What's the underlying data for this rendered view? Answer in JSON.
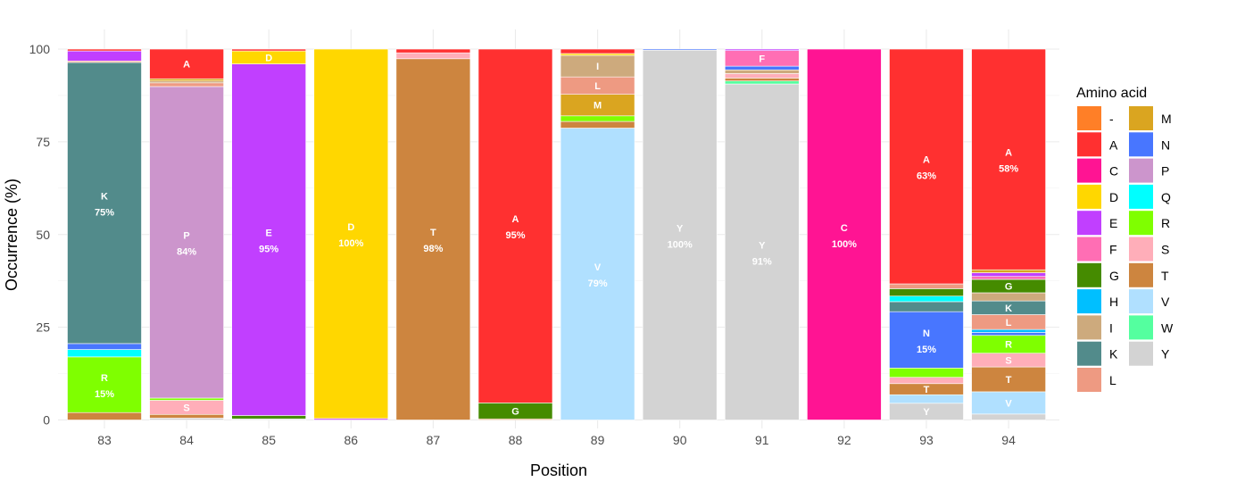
{
  "chart_data": {
    "type": "bar",
    "stacked": true,
    "xlabel": "Position",
    "ylabel": "Occurrence (%)",
    "ylim": [
      0,
      100
    ],
    "yticks": [
      0,
      25,
      50,
      75,
      100
    ],
    "grid": true,
    "legend": {
      "title": "Amino acid",
      "placement": "right",
      "columns": 2
    },
    "colors": {
      "-": "#FF7F27",
      "A": "#FF3030",
      "C": "#FF1493",
      "D": "#FFD700",
      "E": "#C13FFF",
      "F": "#FF6EB4",
      "G": "#458B00",
      "H": "#00BFFF",
      "I": "#CDAA7D",
      "K": "#528B8B",
      "L": "#EE9A82",
      "M": "#DAA520",
      "N": "#4876FF",
      "P": "#CC95CC",
      "Q": "#00FFFF",
      "R": "#7FFF00",
      "S": "#FFAEB9",
      "T": "#CD853F",
      "V": "#B0E0FF",
      "W": "#54FF9F",
      "Y": "#D3D3D3"
    },
    "categories": [
      "83",
      "84",
      "85",
      "86",
      "87",
      "88",
      "89",
      "90",
      "91",
      "92",
      "93",
      "94"
    ],
    "stacks": [
      {
        "position": "83",
        "segments": [
          {
            "aa": "T",
            "value": 2,
            "label": ""
          },
          {
            "aa": "R",
            "value": 15,
            "label": "R",
            "pct": "15%"
          },
          {
            "aa": "Q",
            "value": 2,
            "label": ""
          },
          {
            "aa": "N",
            "value": 1.6,
            "label": ""
          },
          {
            "aa": "K",
            "value": 75.8,
            "label": "K",
            "pct": "75%"
          },
          {
            "aa": "L",
            "value": 0.4,
            "label": ""
          },
          {
            "aa": "E",
            "value": 2.7,
            "label": ""
          },
          {
            "aa": "A",
            "value": 0.5,
            "label": ""
          }
        ]
      },
      {
        "position": "84",
        "segments": [
          {
            "aa": "Y",
            "value": 0.5,
            "label": ""
          },
          {
            "aa": "T",
            "value": 1,
            "label": ""
          },
          {
            "aa": "S",
            "value": 3.8,
            "label": "S"
          },
          {
            "aa": "R",
            "value": 0.6,
            "label": ""
          },
          {
            "aa": "P",
            "value": 84,
            "label": "P",
            "pct": "84%"
          },
          {
            "aa": "L",
            "value": 1,
            "label": ""
          },
          {
            "aa": "I",
            "value": 0.5,
            "label": ""
          },
          {
            "aa": "M",
            "value": 0.6,
            "label": ""
          },
          {
            "aa": "A",
            "value": 8,
            "label": "A"
          }
        ]
      },
      {
        "position": "85",
        "segments": [
          {
            "aa": "Y",
            "value": 0.3,
            "label": ""
          },
          {
            "aa": "G",
            "value": 0.9,
            "label": ""
          },
          {
            "aa": "E",
            "value": 94.8,
            "label": "E",
            "pct": "95%"
          },
          {
            "aa": "D",
            "value": 3.5,
            "label": "D"
          },
          {
            "aa": "A",
            "value": 0.5,
            "label": ""
          }
        ]
      },
      {
        "position": "86",
        "segments": [
          {
            "aa": "E",
            "value": 0.4,
            "label": ""
          },
          {
            "aa": "D",
            "value": 99.6,
            "label": "D",
            "pct": "100%"
          }
        ]
      },
      {
        "position": "87",
        "segments": [
          {
            "aa": "T",
            "value": 97.4,
            "label": "T",
            "pct": "98%"
          },
          {
            "aa": "S",
            "value": 1.6,
            "label": ""
          },
          {
            "aa": "A",
            "value": 1,
            "label": ""
          }
        ]
      },
      {
        "position": "88",
        "segments": [
          {
            "aa": "T",
            "value": 0.3,
            "label": ""
          },
          {
            "aa": "G",
            "value": 4.3,
            "label": "G"
          },
          {
            "aa": "A",
            "value": 95.4,
            "label": "A",
            "pct": "95%"
          }
        ]
      },
      {
        "position": "89",
        "segments": [
          {
            "aa": "V",
            "value": 78.7,
            "label": "V",
            "pct": "79%"
          },
          {
            "aa": "T",
            "value": 1.8,
            "label": ""
          },
          {
            "aa": "R",
            "value": 1.5,
            "label": ""
          },
          {
            "aa": "M",
            "value": 5.8,
            "label": "M"
          },
          {
            "aa": "L",
            "value": 4.7,
            "label": "L"
          },
          {
            "aa": "I",
            "value": 5.8,
            "label": "I"
          },
          {
            "aa": "D",
            "value": 0.5,
            "label": ""
          },
          {
            "aa": "A",
            "value": 1.2,
            "label": ""
          }
        ]
      },
      {
        "position": "90",
        "segments": [
          {
            "aa": "Y",
            "value": 99.7,
            "label": "Y",
            "pct": "100%"
          },
          {
            "aa": "N",
            "value": 0.3,
            "label": ""
          }
        ]
      },
      {
        "position": "91",
        "segments": [
          {
            "aa": "Y",
            "value": 90.6,
            "label": "Y",
            "pct": "91%"
          },
          {
            "aa": "W",
            "value": 0.8,
            "label": ""
          },
          {
            "aa": "T",
            "value": 0.8,
            "label": ""
          },
          {
            "aa": "S",
            "value": 1.2,
            "label": ""
          },
          {
            "aa": "I",
            "value": 1,
            "label": ""
          },
          {
            "aa": "N",
            "value": 1,
            "label": ""
          },
          {
            "aa": "F",
            "value": 4.2,
            "label": "F"
          },
          {
            "aa": "E",
            "value": 0.4,
            "label": ""
          }
        ]
      },
      {
        "position": "92",
        "segments": [
          {
            "aa": "C",
            "value": 100,
            "label": "C",
            "pct": "100%"
          }
        ]
      },
      {
        "position": "93",
        "segments": [
          {
            "aa": "Y",
            "value": 4.5,
            "label": "Y"
          },
          {
            "aa": "V",
            "value": 2.3,
            "label": ""
          },
          {
            "aa": "T",
            "value": 3,
            "label": "T"
          },
          {
            "aa": "S",
            "value": 1.7,
            "label": ""
          },
          {
            "aa": "R",
            "value": 2.5,
            "label": ""
          },
          {
            "aa": "N",
            "value": 15.2,
            "label": "N",
            "pct": "15%"
          },
          {
            "aa": "K",
            "value": 2.7,
            "label": ""
          },
          {
            "aa": "Q",
            "value": 1.5,
            "label": ""
          },
          {
            "aa": "G",
            "value": 2,
            "label": ""
          },
          {
            "aa": "L",
            "value": 1.3,
            "label": ""
          },
          {
            "aa": "A",
            "value": 63.3,
            "label": "A",
            "pct": "63%"
          }
        ]
      },
      {
        "position": "94",
        "segments": [
          {
            "aa": "Y",
            "value": 1.6,
            "label": ""
          },
          {
            "aa": "V",
            "value": 6,
            "label": "V"
          },
          {
            "aa": "T",
            "value": 6.7,
            "label": "T"
          },
          {
            "aa": "S",
            "value": 3.7,
            "label": "S"
          },
          {
            "aa": "R",
            "value": 4.8,
            "label": "R"
          },
          {
            "aa": "N",
            "value": 0.8,
            "label": ""
          },
          {
            "aa": "H",
            "value": 0.8,
            "label": ""
          },
          {
            "aa": "L",
            "value": 4,
            "label": "L"
          },
          {
            "aa": "K",
            "value": 3.7,
            "label": "K"
          },
          {
            "aa": "I",
            "value": 2.2,
            "label": ""
          },
          {
            "aa": "G",
            "value": 3.6,
            "label": "G"
          },
          {
            "aa": "F",
            "value": 0.8,
            "label": ""
          },
          {
            "aa": "E",
            "value": 1,
            "label": ""
          },
          {
            "aa": "M",
            "value": 0.8,
            "label": ""
          },
          {
            "aa": "A",
            "value": 59.5,
            "label": "A",
            "pct": "58%"
          }
        ]
      }
    ],
    "legend_order": [
      "-",
      "A",
      "C",
      "D",
      "E",
      "F",
      "G",
      "H",
      "I",
      "K",
      "L",
      "M",
      "N",
      "P",
      "Q",
      "R",
      "S",
      "T",
      "V",
      "W",
      "Y"
    ]
  }
}
